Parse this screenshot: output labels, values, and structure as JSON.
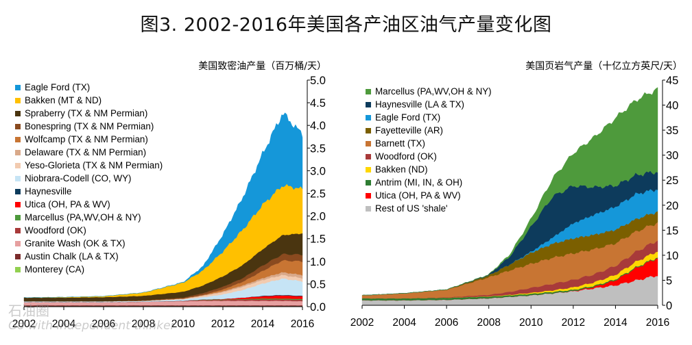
{
  "title": "图3. 2002-2016年美国各产油区油气产量变化图",
  "watermark": {
    "logo_text": "石油圈",
    "slogan": "Go with independent thinker"
  },
  "chart_data": [
    {
      "type": "area",
      "title": "美国致密油产量（百万桶/天）",
      "x": [
        2002,
        2004,
        2006,
        2008,
        2010,
        2011,
        2012,
        2013,
        2014,
        2015,
        2016
      ],
      "xticks": [
        "2002",
        "2004",
        "2006",
        "2008",
        "2010",
        "2012",
        "2014",
        "2016"
      ],
      "yticks": [
        "0.0",
        "0.5",
        "1.0",
        "1.5",
        "2.0",
        "2.5",
        "3.0",
        "3.5",
        "4.0",
        "4.5",
        "5.0"
      ],
      "ylim": [
        0,
        5.0
      ],
      "series": [
        {
          "name": "Monterey (CA)",
          "color": "#92d050",
          "values": [
            0.01,
            0.01,
            0.01,
            0.01,
            0.01,
            0.01,
            0.01,
            0.01,
            0.01,
            0.01,
            0.01
          ]
        },
        {
          "name": "Austin Chalk (LA & TX)",
          "color": "#7b2c2c",
          "values": [
            0.02,
            0.02,
            0.02,
            0.02,
            0.02,
            0.02,
            0.02,
            0.02,
            0.02,
            0.02,
            0.02
          ]
        },
        {
          "name": "Granite Wash (OK & TX)",
          "color": "#e6a0a0",
          "values": [
            0.07,
            0.07,
            0.07,
            0.08,
            0.09,
            0.1,
            0.1,
            0.1,
            0.1,
            0.1,
            0.09
          ]
        },
        {
          "name": "Woodford (OK)",
          "color": "#a83a3a",
          "values": [
            0.0,
            0.0,
            0.0,
            0.0,
            0.01,
            0.02,
            0.02,
            0.03,
            0.03,
            0.03,
            0.03
          ]
        },
        {
          "name": "Marcellus (PA,WV,OH & NY)",
          "color": "#4e9a3c",
          "values": [
            0.0,
            0.0,
            0.0,
            0.0,
            0.0,
            0.01,
            0.01,
            0.01,
            0.02,
            0.02,
            0.02
          ]
        },
        {
          "name": "Utica (OH, PA & WV)",
          "color": "#ff0000",
          "values": [
            0.0,
            0.0,
            0.0,
            0.0,
            0.0,
            0.0,
            0.01,
            0.03,
            0.05,
            0.07,
            0.06
          ]
        },
        {
          "name": "Haynesville",
          "color": "#0d3b5c",
          "values": [
            0.0,
            0.0,
            0.0,
            0.0,
            0.0,
            0.0,
            0.0,
            0.0,
            0.01,
            0.01,
            0.01
          ]
        },
        {
          "name": "Niobrara-Codell (CO, WY)",
          "color": "#c6e4f5",
          "values": [
            0.02,
            0.02,
            0.02,
            0.02,
            0.03,
            0.05,
            0.1,
            0.17,
            0.27,
            0.36,
            0.32
          ]
        },
        {
          "name": "Yeso-Glorieta (TX & NM Permian)",
          "color": "#f2cbb0",
          "values": [
            0.0,
            0.0,
            0.0,
            0.0,
            0.01,
            0.03,
            0.05,
            0.07,
            0.08,
            0.08,
            0.07
          ]
        },
        {
          "name": "Delaware (TX & NM Permian)",
          "color": "#d9a98a",
          "values": [
            0.0,
            0.0,
            0.0,
            0.0,
            0.01,
            0.01,
            0.02,
            0.03,
            0.04,
            0.06,
            0.07
          ]
        },
        {
          "name": "Wolfcamp (TX & NM Permian)",
          "color": "#c87533",
          "values": [
            0.0,
            0.0,
            0.0,
            0.0,
            0.0,
            0.01,
            0.04,
            0.08,
            0.16,
            0.26,
            0.3
          ]
        },
        {
          "name": "Bonespring (TX & NM Permian)",
          "color": "#8a4a1f",
          "values": [
            0.0,
            0.0,
            0.0,
            0.01,
            0.02,
            0.04,
            0.06,
            0.08,
            0.12,
            0.14,
            0.15
          ]
        },
        {
          "name": "Spraberry (TX & NM Permian)",
          "color": "#4a3510",
          "values": [
            0.08,
            0.08,
            0.09,
            0.1,
            0.13,
            0.17,
            0.23,
            0.29,
            0.36,
            0.42,
            0.47
          ]
        },
        {
          "name": "Bakken (MT & ND)",
          "color": "#ffc000",
          "values": [
            0.0,
            0.01,
            0.02,
            0.07,
            0.2,
            0.33,
            0.55,
            0.78,
            0.98,
            1.1,
            0.98
          ]
        },
        {
          "name": "Eagle Ford (TX)",
          "color": "#1597d9",
          "values": [
            0.0,
            0.0,
            0.0,
            0.0,
            0.01,
            0.09,
            0.37,
            0.71,
            1.12,
            1.59,
            1.2
          ]
        }
      ]
    },
    {
      "type": "area",
      "title": "美国页岩气产量（十亿立方英尺/天）",
      "x": [
        2002,
        2004,
        2006,
        2008,
        2009,
        2010,
        2011,
        2012,
        2013,
        2014,
        2015,
        2016
      ],
      "xticks": [
        "2002",
        "2004",
        "2006",
        "2008",
        "2010",
        "2012",
        "2014",
        "2016"
      ],
      "yticks": [
        "0",
        "5",
        "10",
        "15",
        "20",
        "25",
        "30",
        "35",
        "40",
        "45"
      ],
      "ylim": [
        0,
        45
      ],
      "series": [
        {
          "name": "Rest of US 'shale'",
          "color": "#bfbfbf",
          "values": [
            1.0,
            1.0,
            1.1,
            1.4,
            1.7,
            2.0,
            2.4,
            2.8,
            3.4,
            4.0,
            5.0,
            6.0
          ]
        },
        {
          "name": "Utica (OH, PA & WV)",
          "color": "#ff0000",
          "values": [
            0.0,
            0.0,
            0.0,
            0.0,
            0.0,
            0.0,
            0.0,
            0.05,
            0.3,
            1.0,
            2.5,
            3.5
          ]
        },
        {
          "name": "Antrim (MI, IN, & OH)",
          "color": "#2e7d32",
          "values": [
            0.4,
            0.4,
            0.4,
            0.35,
            0.3,
            0.3,
            0.28,
            0.25,
            0.22,
            0.2,
            0.18,
            0.15
          ]
        },
        {
          "name": "Bakken (ND)",
          "color": "#ffd700",
          "values": [
            0.0,
            0.0,
            0.0,
            0.05,
            0.1,
            0.2,
            0.3,
            0.5,
            0.7,
            0.9,
            1.1,
            1.2
          ]
        },
        {
          "name": "Woodford (OK)",
          "color": "#a83a3a",
          "values": [
            0.0,
            0.0,
            0.1,
            0.3,
            0.6,
            1.0,
            1.3,
            1.5,
            1.6,
            1.8,
            2.0,
            2.2
          ]
        },
        {
          "name": "Barnett (TX)",
          "color": "#c87533",
          "values": [
            0.6,
            1.0,
            1.5,
            3.5,
            4.3,
            4.8,
            5.2,
            5.3,
            5.0,
            4.5,
            4.0,
            3.5
          ]
        },
        {
          "name": "Fayetteville (AR)",
          "color": "#7b5f00",
          "values": [
            0.0,
            0.0,
            0.05,
            0.4,
            1.2,
            2.2,
            2.8,
            3.0,
            2.9,
            2.7,
            2.5,
            2.2
          ]
        },
        {
          "name": "Eagle Ford (TX)",
          "color": "#1597d9",
          "values": [
            0.0,
            0.0,
            0.0,
            0.0,
            0.0,
            0.2,
            1.2,
            3.0,
            4.0,
            4.6,
            5.0,
            4.5
          ]
        },
        {
          "name": "Haynesville (LA & TX)",
          "color": "#0d3b5c",
          "values": [
            0.0,
            0.0,
            0.0,
            0.1,
            1.6,
            5.0,
            8.2,
            7.5,
            5.5,
            4.2,
            3.8,
            3.5
          ]
        },
        {
          "name": "Marcellus (PA,WV,OH & NY)",
          "color": "#4e9a3c",
          "values": [
            0.0,
            0.0,
            0.0,
            0.05,
            0.4,
            1.5,
            3.5,
            6.5,
            10.0,
            13.5,
            15.0,
            16.5
          ]
        }
      ]
    }
  ]
}
